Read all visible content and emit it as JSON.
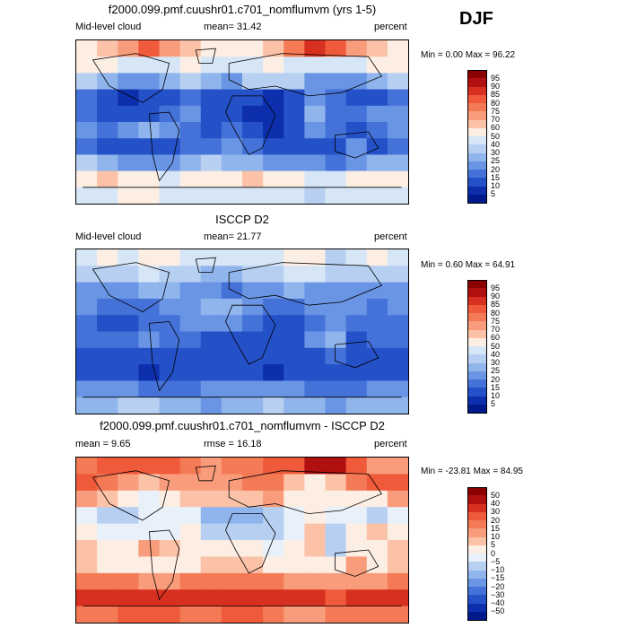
{
  "season": "DJF",
  "panels": [
    {
      "title": "f2000.099.pmf.cuushr01.c701_nomflumvm (yrs 1-5)",
      "left_label": "Mid-level cloud",
      "mean_label": "mean=  31.42",
      "units": "percent",
      "minmax": "Min =    0.00 Max =  96.22"
    },
    {
      "title": "ISCCP D2",
      "left_label": "Mid-level cloud",
      "mean_label": "mean=  21.77",
      "units": "percent",
      "minmax": "Min =    0.60 Max =  64.91"
    },
    {
      "title": "f2000.099.pmf.cuushr01.c701_nomflumvm - ISCCP D2",
      "left_label": "mean =    9.65",
      "mean_label": "rmse =   16.18",
      "units": "percent",
      "minmax": "Min = -23.81 Max =  84.95"
    }
  ],
  "chart_data": [
    {
      "type": "heatmap",
      "title": "f2000.099.pmf.cuushr01.c701_nomflumvm (yrs 1-5)",
      "variable": "Mid-level cloud",
      "units": "percent",
      "mean": 31.42,
      "min": 0.0,
      "max": 96.22,
      "colorbar_levels": [
        "95",
        "90",
        "85",
        "80",
        "75",
        "70",
        "60",
        "50",
        "40",
        "30",
        "25",
        "20",
        "15",
        "10",
        "5"
      ],
      "colorbar_colors": [
        "#8b0000",
        "#b01010",
        "#d73020",
        "#ef5a3a",
        "#f47a56",
        "#f99c7c",
        "#fcc2a8",
        "#fdeee4",
        "#d6e6f7",
        "#b7d0f2",
        "#90b4ec",
        "#6a95e4",
        "#4472d8",
        "#2450c8",
        "#0d2fae",
        "#001a8c"
      ],
      "grid": [
        [
          55,
          62,
          72,
          80,
          70,
          60,
          52,
          50,
          58,
          64,
          78,
          88,
          82,
          70,
          60,
          55
        ],
        [
          55,
          50,
          45,
          42,
          48,
          50,
          42,
          40,
          45,
          50,
          45,
          42,
          40,
          48,
          52,
          55
        ],
        [
          32,
          28,
          22,
          20,
          25,
          30,
          26,
          24,
          30,
          36,
          30,
          24,
          20,
          22,
          28,
          32
        ],
        [
          15,
          10,
          8,
          12,
          14,
          18,
          10,
          12,
          10,
          8,
          12,
          20,
          18,
          14,
          10,
          15
        ],
        [
          18,
          12,
          10,
          14,
          16,
          20,
          12,
          10,
          6,
          5,
          10,
          25,
          16,
          18,
          22,
          20
        ],
        [
          22,
          18,
          20,
          28,
          24,
          18,
          14,
          16,
          10,
          8,
          14,
          24,
          18,
          14,
          16,
          22
        ],
        [
          18,
          14,
          12,
          10,
          12,
          16,
          18,
          20,
          16,
          12,
          10,
          12,
          14,
          20,
          12,
          16
        ],
        [
          30,
          28,
          24,
          20,
          22,
          26,
          30,
          28,
          26,
          24,
          22,
          20,
          18,
          24,
          26,
          28
        ],
        [
          55,
          60,
          58,
          50,
          48,
          52,
          55,
          58,
          60,
          56,
          52,
          48,
          45,
          50,
          52,
          55
        ],
        [
          40,
          45,
          50,
          52,
          48,
          44,
          42,
          45,
          48,
          44,
          40,
          38,
          40,
          42,
          44,
          40
        ]
      ]
    },
    {
      "type": "heatmap",
      "title": "ISCCP D2",
      "variable": "Mid-level cloud",
      "units": "percent",
      "mean": 21.77,
      "min": 0.6,
      "max": 64.91,
      "colorbar_levels": [
        "95",
        "90",
        "85",
        "80",
        "75",
        "70",
        "60",
        "50",
        "40",
        "30",
        "25",
        "20",
        "15",
        "10",
        "5"
      ],
      "colorbar_colors": [
        "#8b0000",
        "#b01010",
        "#d73020",
        "#ef5a3a",
        "#f47a56",
        "#f99c7c",
        "#fcc2a8",
        "#fdeee4",
        "#d6e6f7",
        "#b7d0f2",
        "#90b4ec",
        "#6a95e4",
        "#4472d8",
        "#2450c8",
        "#0d2fae",
        "#001a8c"
      ],
      "grid": [
        [
          45,
          50,
          48,
          52,
          50,
          46,
          42,
          40,
          44,
          48,
          52,
          55,
          30,
          45,
          50,
          46
        ],
        [
          30,
          34,
          36,
          40,
          38,
          34,
          28,
          26,
          30,
          34,
          40,
          42,
          36,
          32,
          30,
          32
        ],
        [
          22,
          20,
          24,
          28,
          26,
          22,
          20,
          18,
          22,
          24,
          26,
          24,
          20,
          22,
          24,
          22
        ],
        [
          20,
          18,
          16,
          18,
          20,
          24,
          26,
          28,
          24,
          18,
          16,
          20,
          22,
          20,
          18,
          20
        ],
        [
          16,
          14,
          14,
          16,
          18,
          20,
          22,
          20,
          16,
          14,
          12,
          18,
          24,
          18,
          16,
          16
        ],
        [
          18,
          16,
          18,
          20,
          18,
          16,
          14,
          14,
          12,
          12,
          14,
          20,
          26,
          14,
          16,
          18
        ],
        [
          14,
          12,
          10,
          12,
          12,
          14,
          14,
          12,
          10,
          10,
          12,
          14,
          16,
          12,
          10,
          12
        ],
        [
          14,
          12,
          10,
          8,
          10,
          12,
          14,
          12,
          10,
          8,
          10,
          12,
          10,
          12,
          14,
          14
        ],
        [
          22,
          24,
          20,
          18,
          16,
          18,
          20,
          22,
          24,
          22,
          20,
          18,
          16,
          18,
          20,
          22
        ],
        [
          26,
          28,
          30,
          30,
          28,
          26,
          24,
          26,
          28,
          30,
          28,
          26,
          24,
          26,
          28,
          26
        ]
      ]
    },
    {
      "type": "heatmap",
      "title": "f2000.099.pmf.cuushr01.c701_nomflumvm - ISCCP D2",
      "variable": "Mid-level cloud difference",
      "units": "percent",
      "mean": 9.65,
      "rmse": 16.18,
      "min": -23.81,
      "max": 84.95,
      "colorbar_levels": [
        "50",
        "40",
        "30",
        "20",
        "15",
        "10",
        "5",
        "0",
        "−5",
        "−10",
        "−15",
        "−20",
        "−30",
        "−40",
        "−50"
      ],
      "colorbar_colors": [
        "#8b0000",
        "#b01010",
        "#d73020",
        "#ef5a3a",
        "#f47a56",
        "#f99c7c",
        "#fcc2a8",
        "#fdeee4",
        "#e8f0fa",
        "#b7d0f2",
        "#90b4ec",
        "#6a95e4",
        "#4472d8",
        "#2450c8",
        "#0d2fae",
        "#001a8c"
      ],
      "grid": [
        [
          15,
          20,
          22,
          28,
          22,
          18,
          14,
          16,
          18,
          20,
          25,
          40,
          45,
          20,
          12,
          14
        ],
        [
          24,
          16,
          10,
          6,
          10,
          14,
          14,
          12,
          15,
          18,
          8,
          2,
          5,
          16,
          20,
          22
        ],
        [
          10,
          8,
          2,
          -2,
          0,
          8,
          6,
          6,
          8,
          12,
          4,
          0,
          0,
          0,
          4,
          10
        ],
        [
          -4,
          -6,
          -6,
          -4,
          -4,
          -5,
          -14,
          -14,
          -12,
          -8,
          -4,
          0,
          -2,
          -4,
          -6,
          -4
        ],
        [
          4,
          -2,
          -4,
          -2,
          -2,
          0,
          -10,
          -10,
          -8,
          -8,
          -2,
          6,
          -6,
          2,
          6,
          4
        ],
        [
          6,
          4,
          4,
          10,
          8,
          4,
          2,
          4,
          0,
          -2,
          2,
          6,
          -8,
          2,
          2,
          6
        ],
        [
          6,
          4,
          4,
          0,
          2,
          4,
          6,
          8,
          8,
          4,
          0,
          0,
          0,
          10,
          4,
          6
        ],
        [
          18,
          18,
          16,
          14,
          14,
          16,
          18,
          18,
          18,
          18,
          14,
          10,
          10,
          14,
          14,
          16
        ],
        [
          34,
          36,
          36,
          32,
          32,
          34,
          36,
          38,
          38,
          36,
          32,
          30,
          28,
          32,
          32,
          34
        ],
        [
          16,
          18,
          22,
          24,
          22,
          18,
          18,
          20,
          20,
          16,
          12,
          12,
          16,
          18,
          18,
          16
        ]
      ]
    }
  ]
}
